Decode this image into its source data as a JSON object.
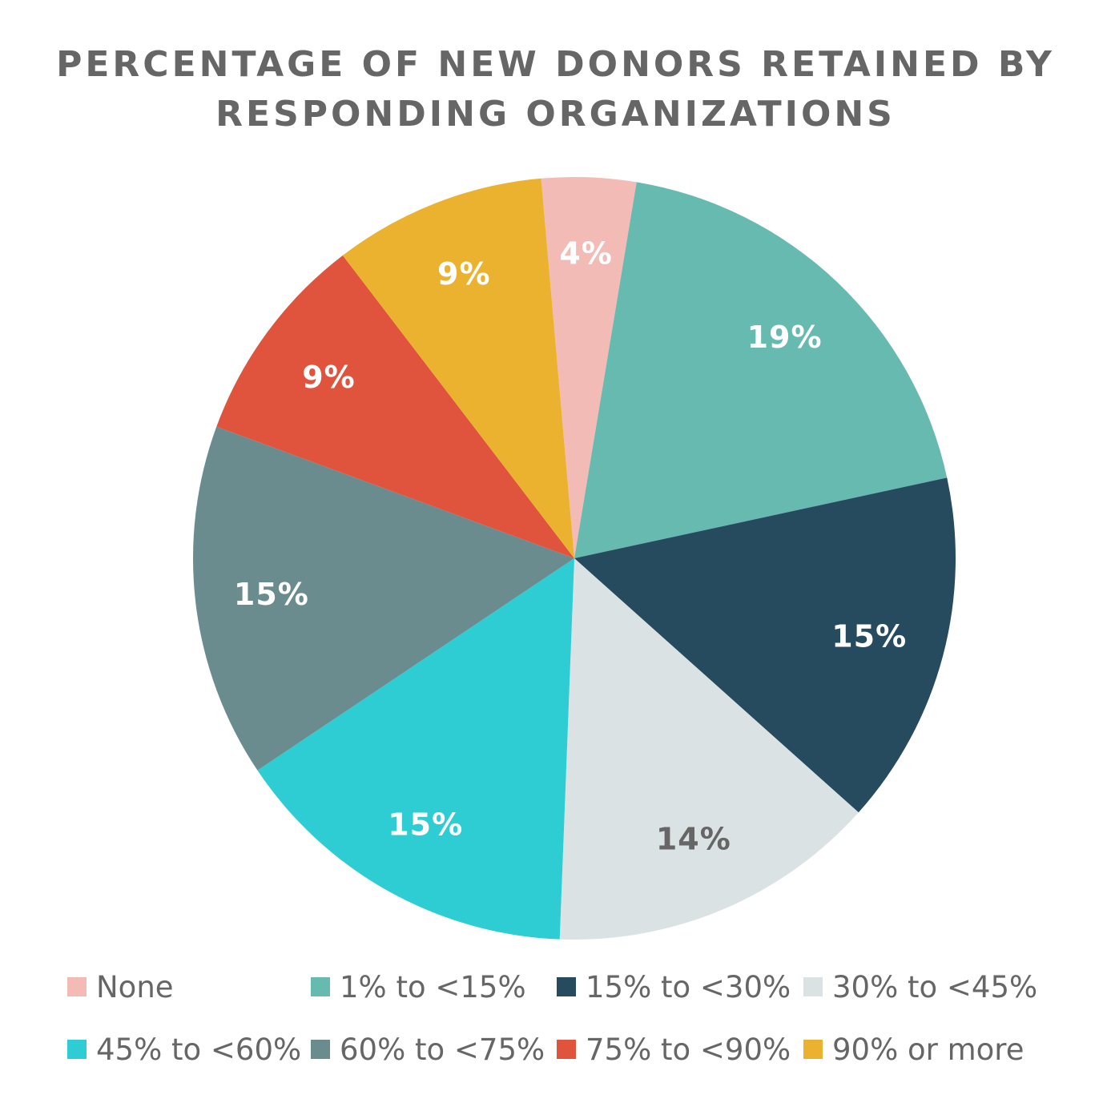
{
  "chart_data": {
    "type": "pie",
    "title_lines": [
      "PERCENTAGE OF NEW DONORS RETAINED BY",
      "RESPONDING ORGANIZATIONS"
    ],
    "categories": [
      "None",
      "1% to <15%",
      "15% to <30%",
      "30% to <45%",
      "45% to <60%",
      "60% to <75%",
      "75% to <90%",
      "90% or more"
    ],
    "values": [
      4,
      19,
      15,
      14,
      15,
      15,
      9,
      9
    ],
    "labels": [
      "4%",
      "19%",
      "15%",
      "14%",
      "15%",
      "15%",
      "9%",
      "9%"
    ],
    "colors": [
      "#F2BBB5",
      "#66BAAF",
      "#264A5E",
      "#DAE2E3",
      "#2ECCD3",
      "#6B8C8F",
      "#E0533D",
      "#EBB22F"
    ],
    "label_colors": [
      "#FFFFFF",
      "#FFFFFF",
      "#FFFFFF",
      "#666666",
      "#FFFFFF",
      "#FFFFFF",
      "#FFFFFF",
      "#FFFFFF"
    ],
    "start_angle_deg": -5,
    "legend_placement": "bottom"
  }
}
